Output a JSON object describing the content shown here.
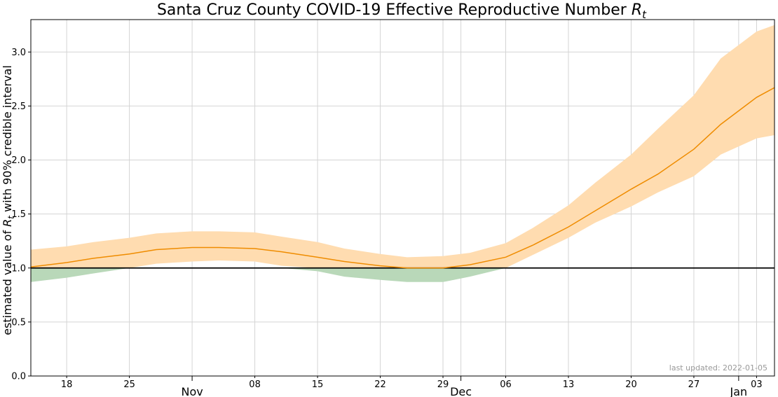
{
  "chart_data": {
    "type": "line",
    "title": "Santa Cruz County COVID-19 Effective Reproductive Number ",
    "title_symbol": "R",
    "title_subscript": "t",
    "ylabel_prefix": "estimated value of ",
    "ylabel_symbol": "R",
    "ylabel_subscript": "t",
    "ylabel_suffix": " with 90% credible interval",
    "footnote": "last updated: 2022-01-05",
    "x_range": [
      "2021-10-14",
      "2022-01-05"
    ],
    "ylim": [
      0.0,
      3.3
    ],
    "y_ticks": [
      {
        "value": 0.0,
        "label": "0.0"
      },
      {
        "value": 0.5,
        "label": "0.5"
      },
      {
        "value": 1.0,
        "label": "1.0"
      },
      {
        "value": 1.5,
        "label": "1.5"
      },
      {
        "value": 2.0,
        "label": "2.0"
      },
      {
        "value": 2.5,
        "label": "2.5"
      },
      {
        "value": 3.0,
        "label": "3.0"
      }
    ],
    "x_minor_ticks": [
      {
        "date": "2021-10-18",
        "label": "18"
      },
      {
        "date": "2021-10-25",
        "label": "25"
      },
      {
        "date": "2021-11-08",
        "label": "08"
      },
      {
        "date": "2021-11-15",
        "label": "15"
      },
      {
        "date": "2021-11-22",
        "label": "22"
      },
      {
        "date": "2021-11-29",
        "label": "29"
      },
      {
        "date": "2021-12-06",
        "label": "06"
      },
      {
        "date": "2021-12-13",
        "label": "13"
      },
      {
        "date": "2021-12-20",
        "label": "20"
      },
      {
        "date": "2021-12-27",
        "label": "27"
      },
      {
        "date": "2022-01-03",
        "label": "03"
      }
    ],
    "x_major_ticks": [
      {
        "date": "2021-11-01",
        "label": "Nov"
      },
      {
        "date": "2021-12-01",
        "label": "Dec"
      },
      {
        "date": "2022-01-01",
        "label": "Jan"
      }
    ],
    "reference_line": 1.0,
    "grid": true,
    "colors": {
      "line": "#ef8c00",
      "upper_band": "#ffdcb0",
      "lower_band": "#b9d8b9",
      "reference": "#000000",
      "grid": "#d4d4d4"
    },
    "series": [
      {
        "dates": [
          "2021-10-14",
          "2021-10-18",
          "2021-10-21",
          "2021-10-25",
          "2021-10-28",
          "2021-11-01",
          "2021-11-04",
          "2021-11-08",
          "2021-11-11",
          "2021-11-15",
          "2021-11-18",
          "2021-11-22",
          "2021-11-25",
          "2021-11-29",
          "2021-12-02",
          "2021-12-06",
          "2021-12-09",
          "2021-12-13",
          "2021-12-16",
          "2021-12-20",
          "2021-12-23",
          "2021-12-27",
          "2021-12-30",
          "2022-01-03",
          "2022-01-05"
        ],
        "values": [
          1.01,
          1.05,
          1.09,
          1.13,
          1.17,
          1.19,
          1.19,
          1.18,
          1.15,
          1.1,
          1.06,
          1.02,
          1.0,
          1.0,
          1.03,
          1.1,
          1.21,
          1.38,
          1.53,
          1.73,
          1.87,
          2.1,
          2.33,
          2.58,
          2.67
        ],
        "lower": [
          0.87,
          0.91,
          0.95,
          1.0,
          1.04,
          1.06,
          1.07,
          1.06,
          1.02,
          0.97,
          0.92,
          0.89,
          0.87,
          0.87,
          0.92,
          1.0,
          1.12,
          1.28,
          1.42,
          1.57,
          1.7,
          1.85,
          2.05,
          2.2,
          2.23
        ],
        "upper": [
          1.17,
          1.2,
          1.24,
          1.28,
          1.32,
          1.34,
          1.34,
          1.33,
          1.29,
          1.24,
          1.18,
          1.13,
          1.1,
          1.11,
          1.14,
          1.23,
          1.37,
          1.58,
          1.79,
          2.05,
          2.29,
          2.6,
          2.94,
          3.19,
          3.25
        ]
      }
    ]
  }
}
